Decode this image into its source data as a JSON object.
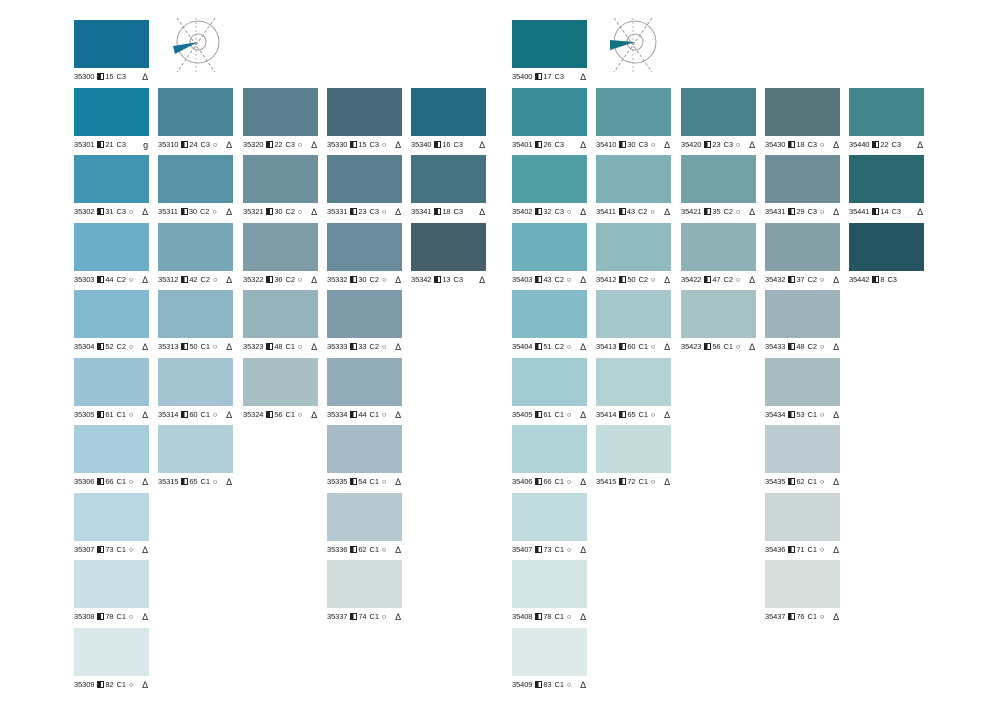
{
  "icons": {
    "lrv": "lrv-square-icon",
    "circle": "circle-icon",
    "triangle": "delta-icon",
    "diagram": "angle-diagram-icon"
  },
  "symbols": {
    "circle": "○",
    "delta": "Δ"
  },
  "accent_color": "#0f6f88",
  "columns": [
    {
      "chips": [
        {
          "code": "35300",
          "lrv": "15",
          "grade": "C3",
          "circle": false,
          "flag": "Δ",
          "color": "#146f92"
        },
        {
          "code": "35301",
          "lrv": "21",
          "grade": "C3",
          "circle": false,
          "flag": "g",
          "color": "#1580a0"
        },
        {
          "code": "35302",
          "lrv": "31",
          "grade": "C3",
          "circle": true,
          "flag": "Δ",
          "color": "#4396b2"
        },
        {
          "code": "35303",
          "lrv": "44",
          "grade": "C2",
          "circle": true,
          "flag": "Δ",
          "color": "#6aaec8"
        },
        {
          "code": "35304",
          "lrv": "52",
          "grade": "C2",
          "circle": true,
          "flag": "Δ",
          "color": "#82b9cf"
        },
        {
          "code": "35305",
          "lrv": "61",
          "grade": "C1",
          "circle": true,
          "flag": "Δ",
          "color": "#9ac4d5"
        },
        {
          "code": "35306",
          "lrv": "66",
          "grade": "C1",
          "circle": true,
          "flag": "Δ",
          "color": "#a7cddc"
        },
        {
          "code": "35307",
          "lrv": "73",
          "grade": "C1",
          "circle": true,
          "flag": "Δ",
          "color": "#b8d7e2"
        },
        {
          "code": "35308",
          "lrv": "78",
          "grade": "C1",
          "circle": true,
          "flag": "Δ",
          "color": "#c9dfe6"
        },
        {
          "code": "35309",
          "lrv": "82",
          "grade": "C1",
          "circle": true,
          "flag": "Δ",
          "color": "#dbe8ea"
        }
      ]
    },
    {
      "chips": [
        {
          "code": "35310",
          "lrv": "24",
          "grade": "C3",
          "circle": true,
          "flag": "Δ",
          "color": "#4a8498"
        },
        {
          "code": "35311",
          "lrv": "30",
          "grade": "C2",
          "circle": true,
          "flag": "Δ",
          "color": "#5892a5"
        },
        {
          "code": "35312",
          "lrv": "42",
          "grade": "C2",
          "circle": true,
          "flag": "Δ",
          "color": "#79a7b8"
        },
        {
          "code": "35313",
          "lrv": "50",
          "grade": "C1",
          "circle": true,
          "flag": "Δ",
          "color": "#8eb5c3"
        },
        {
          "code": "35314",
          "lrv": "60",
          "grade": "C1",
          "circle": true,
          "flag": "Δ",
          "color": "#a3c4d0"
        },
        {
          "code": "35315",
          "lrv": "65",
          "grade": "C1",
          "circle": true,
          "flag": "Δ",
          "color": "#b3cfd8"
        }
      ]
    },
    {
      "chips": [
        {
          "code": "35320",
          "lrv": "22",
          "grade": "C3",
          "circle": true,
          "flag": "Δ",
          "color": "#5a7f8e"
        },
        {
          "code": "35321",
          "lrv": "30",
          "grade": "C2",
          "circle": true,
          "flag": "Δ",
          "color": "#6d909d"
        },
        {
          "code": "35322",
          "lrv": "36",
          "grade": "C2",
          "circle": true,
          "flag": "Δ",
          "color": "#7f9ca6"
        },
        {
          "code": "35323",
          "lrv": "48",
          "grade": "C1",
          "circle": true,
          "flag": "Δ",
          "color": "#96b2bb"
        },
        {
          "code": "35324",
          "lrv": "56",
          "grade": "C1",
          "circle": true,
          "flag": "Δ",
          "color": "#a8bfc4"
        }
      ]
    },
    {
      "chips": [
        {
          "code": "35330",
          "lrv": "15",
          "grade": "C3",
          "circle": true,
          "flag": "Δ",
          "color": "#486a78"
        },
        {
          "code": "35331",
          "lrv": "23",
          "grade": "C3",
          "circle": true,
          "flag": "Δ",
          "color": "#5b7f8f"
        },
        {
          "code": "35332",
          "lrv": "30",
          "grade": "C2",
          "circle": true,
          "flag": "Δ",
          "color": "#6a8b9c"
        },
        {
          "code": "35333",
          "lrv": "33",
          "grade": "C2",
          "circle": true,
          "flag": "Δ",
          "color": "#7c9aa8"
        },
        {
          "code": "35334",
          "lrv": "44",
          "grade": "C1",
          "circle": true,
          "flag": "Δ",
          "color": "#93abb6"
        },
        {
          "code": "35335",
          "lrv": "54",
          "grade": "C1",
          "circle": true,
          "flag": "Δ",
          "color": "#a6bbc5"
        },
        {
          "code": "35336",
          "lrv": "62",
          "grade": "C1",
          "circle": true,
          "flag": "Δ",
          "color": "#b6c8d0"
        },
        {
          "code": "35337",
          "lrv": "74",
          "grade": "C1",
          "circle": true,
          "flag": "Δ",
          "color": "#d2dcdb"
        }
      ]
    },
    {
      "chips": [
        {
          "code": "35340",
          "lrv": "16",
          "grade": "C3",
          "circle": false,
          "flag": "Δ",
          "color": "#236c82"
        },
        {
          "code": "35341",
          "lrv": "18",
          "grade": "C3",
          "circle": false,
          "flag": "Δ",
          "color": "#477380"
        },
        {
          "code": "35342",
          "lrv": "13",
          "grade": "C3",
          "circle": false,
          "flag": "Δ",
          "color": "#455f6b"
        }
      ]
    },
    {
      "chips": [
        {
          "code": "35400",
          "lrv": "17",
          "grade": "C3",
          "circle": false,
          "flag": "Δ",
          "color": "#15737f"
        },
        {
          "code": "35401",
          "lrv": "26",
          "grade": "C3",
          "circle": false,
          "flag": "Δ",
          "color": "#3a8c98"
        },
        {
          "code": "35402",
          "lrv": "32",
          "grade": "C3",
          "circle": true,
          "flag": "Δ",
          "color": "#519ea5"
        },
        {
          "code": "35403",
          "lrv": "43",
          "grade": "C2",
          "circle": true,
          "flag": "Δ",
          "color": "#6cafba"
        },
        {
          "code": "35404",
          "lrv": "51",
          "grade": "C2",
          "circle": true,
          "flag": "Δ",
          "color": "#84bbc9"
        },
        {
          "code": "35405",
          "lrv": "61",
          "grade": "C1",
          "circle": true,
          "flag": "Δ",
          "color": "#a1cbd1"
        },
        {
          "code": "35406",
          "lrv": "66",
          "grade": "C1",
          "circle": true,
          "flag": "Δ",
          "color": "#b0d3d8"
        },
        {
          "code": "35407",
          "lrv": "73",
          "grade": "C1",
          "circle": true,
          "flag": "Δ",
          "color": "#c2dbdf"
        },
        {
          "code": "35408",
          "lrv": "78",
          "grade": "C1",
          "circle": true,
          "flag": "Δ",
          "color": "#d2e4e3"
        },
        {
          "code": "35409",
          "lrv": "83",
          "grade": "C1",
          "circle": true,
          "flag": "Δ",
          "color": "#deeaea"
        }
      ]
    },
    {
      "chips": [
        {
          "code": "35410",
          "lrv": "30",
          "grade": "C3",
          "circle": true,
          "flag": "Δ",
          "color": "#5b999f"
        },
        {
          "code": "35411",
          "lrv": "43",
          "grade": "C2",
          "circle": true,
          "flag": "Δ",
          "color": "#80b0b5"
        },
        {
          "code": "35412",
          "lrv": "50",
          "grade": "C2",
          "circle": true,
          "flag": "Δ",
          "color": "#91bbbf"
        },
        {
          "code": "35413",
          "lrv": "60",
          "grade": "C1",
          "circle": true,
          "flag": "Δ",
          "color": "#a7c8cb"
        },
        {
          "code": "35414",
          "lrv": "65",
          "grade": "C1",
          "circle": true,
          "flag": "Δ",
          "color": "#b4d1d3"
        },
        {
          "code": "35415",
          "lrv": "72",
          "grade": "C1",
          "circle": true,
          "flag": "Δ",
          "color": "#c4dcdc"
        }
      ]
    },
    {
      "chips": [
        {
          "code": "35420",
          "lrv": "23",
          "grade": "C3",
          "circle": true,
          "flag": "Δ",
          "color": "#4b838a"
        },
        {
          "code": "35421",
          "lrv": "35",
          "grade": "C2",
          "circle": true,
          "flag": "Δ",
          "color": "#74a1a6"
        },
        {
          "code": "35422",
          "lrv": "47",
          "grade": "C2",
          "circle": true,
          "flag": "Δ",
          "color": "#8fb2b6"
        },
        {
          "code": "35423",
          "lrv": "56",
          "grade": "C1",
          "circle": true,
          "flag": "Δ",
          "color": "#a7c1c4"
        }
      ]
    },
    {
      "chips": [
        {
          "code": "35430",
          "lrv": "18",
          "grade": "C3",
          "circle": true,
          "flag": "Δ",
          "color": "#57757a"
        },
        {
          "code": "35431",
          "lrv": "29",
          "grade": "C3",
          "circle": true,
          "flag": "Δ",
          "color": "#6f8e95"
        },
        {
          "code": "35432",
          "lrv": "37",
          "grade": "C2",
          "circle": true,
          "flag": "Δ",
          "color": "#85a1a7"
        },
        {
          "code": "35433",
          "lrv": "48",
          "grade": "C2",
          "circle": true,
          "flag": "Δ",
          "color": "#9db3b9"
        },
        {
          "code": "35434",
          "lrv": "53",
          "grade": "C1",
          "circle": true,
          "flag": "Δ",
          "color": "#a9bcc0"
        },
        {
          "code": "35435",
          "lrv": "62",
          "grade": "C1",
          "circle": true,
          "flag": "Δ",
          "color": "#bccbcf"
        },
        {
          "code": "35436",
          "lrv": "71",
          "grade": "C1",
          "circle": true,
          "flag": "Δ",
          "color": "#cdd6d7"
        },
        {
          "code": "35437",
          "lrv": "76",
          "grade": "C1",
          "circle": true,
          "flag": "Δ",
          "color": "#d6dedc"
        }
      ]
    },
    {
      "chips": [
        {
          "code": "35440",
          "lrv": "22",
          "grade": "C3",
          "circle": false,
          "flag": "Δ",
          "color": "#43868a"
        },
        {
          "code": "35441",
          "lrv": "14",
          "grade": "C3",
          "circle": false,
          "flag": "Δ",
          "color": "#2a6870"
        },
        {
          "code": "35442",
          "lrv": "8",
          "grade": "C3",
          "circle": false,
          "flag": "",
          "color": "#235460"
        }
      ]
    }
  ]
}
